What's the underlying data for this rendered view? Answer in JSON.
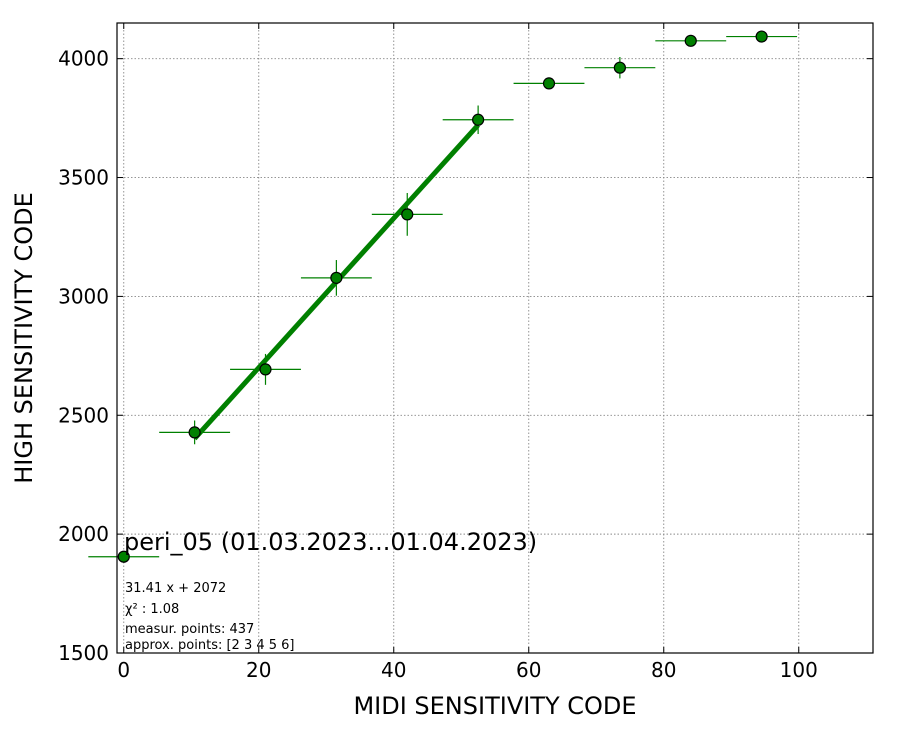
{
  "chart_data": {
    "type": "scatter",
    "title": "peri_05 (01.03.2023...01.04.2023)",
    "xlabel": "MIDI SENSITIVITY CODE",
    "ylabel": "HIGH SENSITIVITY CODE",
    "xlim": [
      -1,
      111
    ],
    "ylim": [
      1500,
      4150
    ],
    "xticks": [
      0,
      20,
      40,
      60,
      80,
      100
    ],
    "yticks": [
      1500,
      2000,
      2500,
      3000,
      3500,
      4000
    ],
    "grid": true,
    "colors": {
      "points": "#008000",
      "fit": "#008000",
      "edge": "#000000"
    },
    "points": [
      {
        "x": 0.0,
        "y": 1905,
        "xerr": 5.25,
        "yerr": 0
      },
      {
        "x": 10.5,
        "y": 2428,
        "xerr": 5.25,
        "yerr": 50
      },
      {
        "x": 21.0,
        "y": 2693,
        "xerr": 5.25,
        "yerr": 65
      },
      {
        "x": 31.5,
        "y": 3078,
        "xerr": 5.25,
        "yerr": 75
      },
      {
        "x": 42.0,
        "y": 3345,
        "xerr": 5.25,
        "yerr": 90
      },
      {
        "x": 52.5,
        "y": 3743,
        "xerr": 5.25,
        "yerr": 60
      },
      {
        "x": 63.0,
        "y": 3896,
        "xerr": 5.25,
        "yerr": 25
      },
      {
        "x": 73.5,
        "y": 3962,
        "xerr": 5.25,
        "yerr": 45
      },
      {
        "x": 84.0,
        "y": 4075,
        "xerr": 5.25,
        "yerr": 15
      },
      {
        "x": 94.5,
        "y": 4093,
        "xerr": 5.25,
        "yerr": 10
      }
    ],
    "fit": {
      "slope": 31.41,
      "intercept": 2072,
      "x_range": [
        10.5,
        52.5
      ]
    },
    "annotations": [
      "31.41 x + 2072",
      "χ² : 1.08",
      "measur. points: 437",
      "approx. points: [2 3 4 5 6]"
    ]
  }
}
